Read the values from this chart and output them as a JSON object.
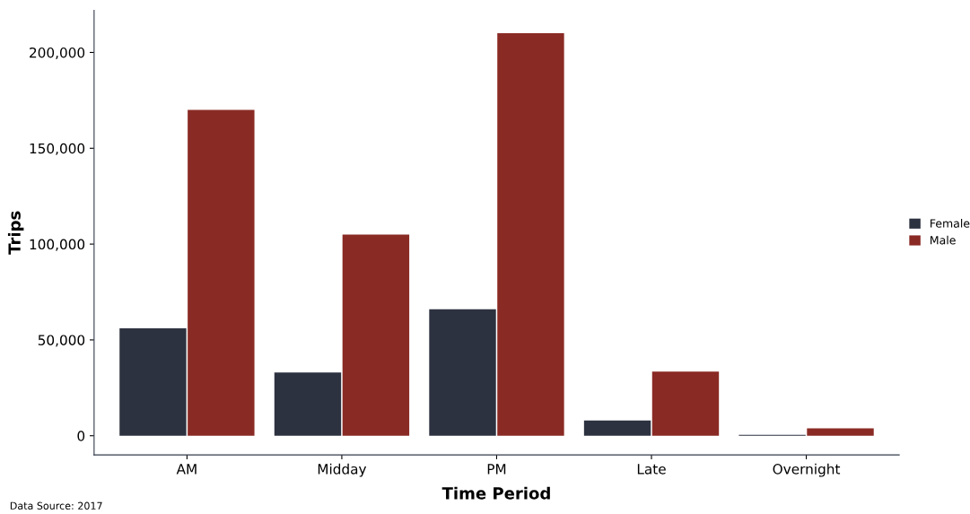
{
  "chart_data": {
    "type": "bar",
    "xlabel": "Time Period",
    "ylabel": "Trips",
    "categories": [
      "AM",
      "Midday",
      "PM",
      "Late",
      "Overnight"
    ],
    "series": [
      {
        "name": "Female",
        "color": "#2d3240",
        "values": [
          56000,
          33000,
          66000,
          8000,
          500
        ]
      },
      {
        "name": "Male",
        "color": "#8a2a24",
        "values": [
          170000,
          105000,
          210000,
          33500,
          3800
        ]
      }
    ],
    "ylim": [
      -10000,
      222000
    ],
    "yticks": [
      {
        "value": 0,
        "label": "0"
      },
      {
        "value": 50000,
        "label": "50,000"
      },
      {
        "value": 100000,
        "label": "100,000"
      },
      {
        "value": 150000,
        "label": "150,000"
      },
      {
        "value": 200000,
        "label": "200,000"
      }
    ],
    "grid": false,
    "legend": "right",
    "annotations": [
      "Data Source: 2017"
    ]
  }
}
